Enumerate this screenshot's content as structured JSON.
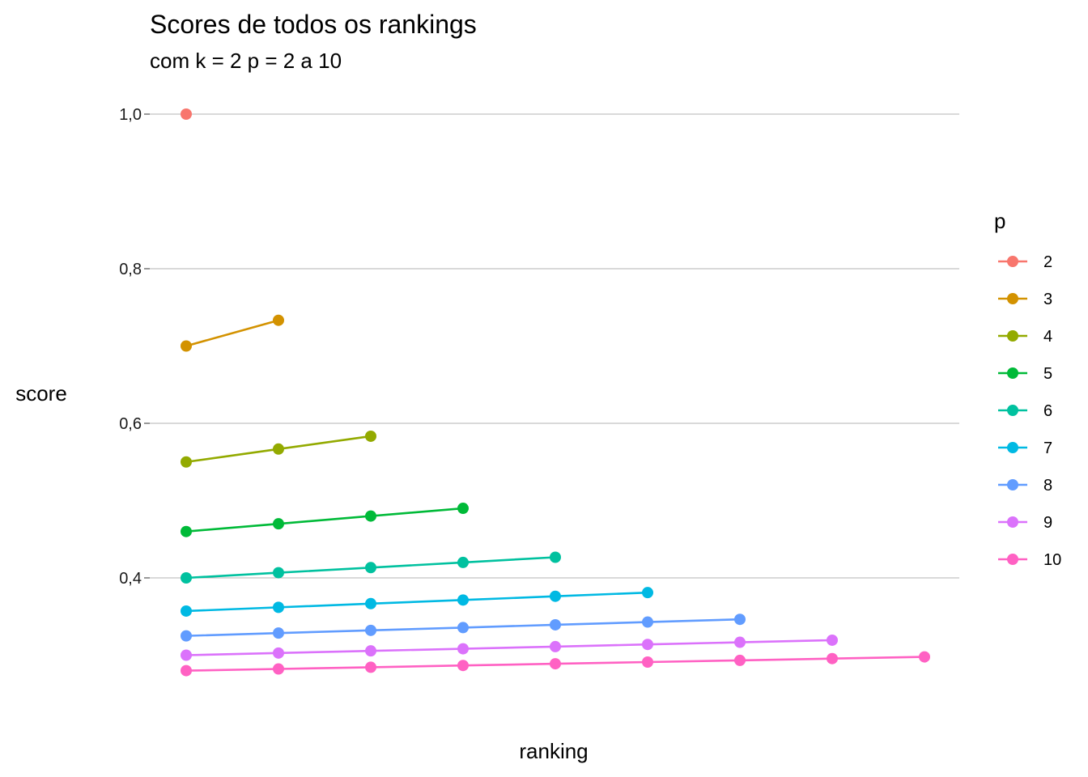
{
  "chart_data": {
    "type": "line",
    "title": "Scores de todos os rankings",
    "subtitle": "com k = 2  p = 2 a 10",
    "xlabel": "ranking",
    "ylabel": "score",
    "x_tick_labels_shown": false,
    "xlim": [
      1,
      9
    ],
    "ylim": [
      0.4,
      1.0
    ],
    "y_ticks": [
      {
        "value": 1.0,
        "label": "1,0"
      },
      {
        "value": 0.8,
        "label": "0,8"
      },
      {
        "value": 0.6,
        "label": "0,6"
      },
      {
        "value": 0.4,
        "label": "0,4"
      }
    ],
    "grid": "horizontal major",
    "legend": {
      "title": "p",
      "placement": "right"
    },
    "series": [
      {
        "name": "2",
        "color": "#F8766D",
        "x": [
          1
        ],
        "y": [
          1.0
        ]
      },
      {
        "name": "3",
        "color": "#D39200",
        "x": [
          1,
          2
        ],
        "y": [
          0.7,
          0.7333
        ]
      },
      {
        "name": "4",
        "color": "#93AA00",
        "x": [
          1,
          2,
          3
        ],
        "y": [
          0.55,
          0.5667,
          0.5833
        ]
      },
      {
        "name": "5",
        "color": "#00BA38",
        "x": [
          1,
          2,
          3,
          4
        ],
        "y": [
          0.46,
          0.47,
          0.48,
          0.49
        ]
      },
      {
        "name": "6",
        "color": "#00C19F",
        "x": [
          1,
          2,
          3,
          4,
          5
        ],
        "y": [
          0.4,
          0.4067,
          0.4133,
          0.42,
          0.4267
        ]
      },
      {
        "name": "7",
        "color": "#00B9E3",
        "x": [
          1,
          2,
          3,
          4,
          5,
          6
        ],
        "y": [
          0.3571,
          0.3619,
          0.3667,
          0.3714,
          0.3762,
          0.381
        ]
      },
      {
        "name": "8",
        "color": "#619CFF",
        "x": [
          1,
          2,
          3,
          4,
          5,
          6,
          7
        ],
        "y": [
          0.325,
          0.3286,
          0.3321,
          0.3357,
          0.3393,
          0.3429,
          0.3464
        ]
      },
      {
        "name": "9",
        "color": "#DB72FB",
        "x": [
          1,
          2,
          3,
          4,
          5,
          6,
          7,
          8
        ],
        "y": [
          0.3,
          0.3028,
          0.3056,
          0.3083,
          0.3111,
          0.3139,
          0.3167,
          0.3194
        ]
      },
      {
        "name": "10",
        "color": "#FF61C3",
        "x": [
          1,
          2,
          3,
          4,
          5,
          6,
          7,
          8,
          9
        ],
        "y": [
          0.28,
          0.2822,
          0.2844,
          0.2867,
          0.2889,
          0.2911,
          0.2933,
          0.2956,
          0.2978
        ]
      }
    ]
  }
}
